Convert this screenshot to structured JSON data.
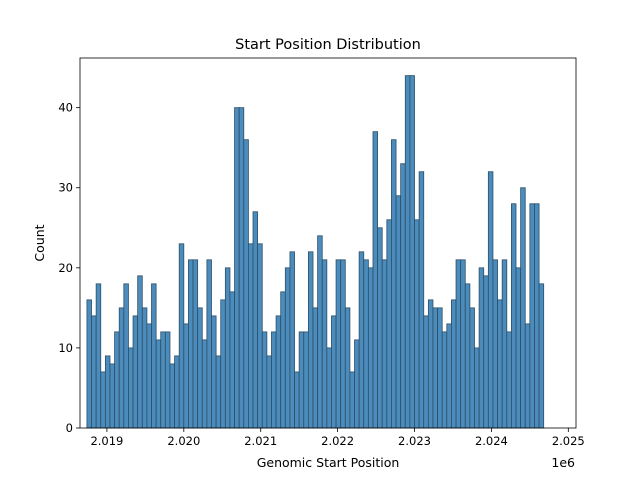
{
  "chart_data": {
    "type": "bar",
    "title": "Start Position Distribution",
    "xlabel": "Genomic Start Position",
    "ylabel": "Count",
    "x_offset_label": "1e6",
    "xlim": [
      2018650,
      2025100
    ],
    "ylim": [
      0,
      46.2
    ],
    "bin_start": 2018740,
    "bin_width": 60,
    "xticks": [
      {
        "value": 2019000,
        "label": "2.019"
      },
      {
        "value": 2020000,
        "label": "2.020"
      },
      {
        "value": 2021000,
        "label": "2.021"
      },
      {
        "value": 2022000,
        "label": "2.022"
      },
      {
        "value": 2023000,
        "label": "2.023"
      },
      {
        "value": 2024000,
        "label": "2.024"
      },
      {
        "value": 2025000,
        "label": "2.025"
      }
    ],
    "yticks": [
      {
        "value": 0,
        "label": "0"
      },
      {
        "value": 10,
        "label": "10"
      },
      {
        "value": 20,
        "label": "20"
      },
      {
        "value": 30,
        "label": "30"
      },
      {
        "value": 40,
        "label": "40"
      }
    ],
    "bar_color": "#4c8cbc",
    "edge_color": "#2b4f68",
    "values": [
      16,
      14,
      18,
      7,
      9,
      8,
      12,
      15,
      18,
      10,
      14,
      19,
      15,
      13,
      18,
      11,
      12,
      12,
      8,
      9,
      23,
      13,
      21,
      21,
      15,
      11,
      21,
      14,
      9,
      16,
      20,
      17,
      40,
      40,
      36,
      23,
      27,
      23,
      12,
      9,
      12,
      14,
      17,
      20,
      22,
      7,
      12,
      12,
      22,
      15,
      24,
      21,
      10,
      14,
      21,
      21,
      15,
      7,
      11,
      22,
      21,
      20,
      37,
      25,
      21,
      26,
      36,
      29,
      33,
      44,
      44,
      26,
      32,
      14,
      16,
      15,
      15,
      12,
      13,
      16,
      21,
      21,
      18,
      15,
      10,
      20,
      19,
      32,
      21,
      16,
      21,
      12,
      28,
      20,
      30,
      13,
      28,
      28,
      18
    ]
  }
}
